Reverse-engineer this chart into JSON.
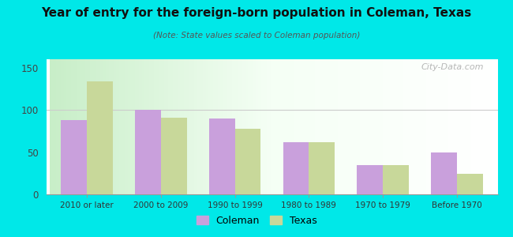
{
  "title": "Year of entry for the foreign-born population in Coleman, Texas",
  "subtitle": "(Note: State values scaled to Coleman population)",
  "categories": [
    "2010 or later",
    "2000 to 2009",
    "1990 to 1999",
    "1980 to 1989",
    "1970 to 1979",
    "Before 1970"
  ],
  "coleman_values": [
    88,
    100,
    90,
    62,
    35,
    50
  ],
  "texas_values": [
    134,
    91,
    78,
    62,
    35,
    24
  ],
  "coleman_color": "#c9a0dc",
  "texas_color": "#c8d89a",
  "background_color": "#00e8e8",
  "ylim": [
    0,
    160
  ],
  "yticks": [
    0,
    50,
    100,
    150
  ],
  "bar_width": 0.35,
  "legend_labels": [
    "Coleman",
    "Texas"
  ],
  "watermark": "City-Data.com"
}
